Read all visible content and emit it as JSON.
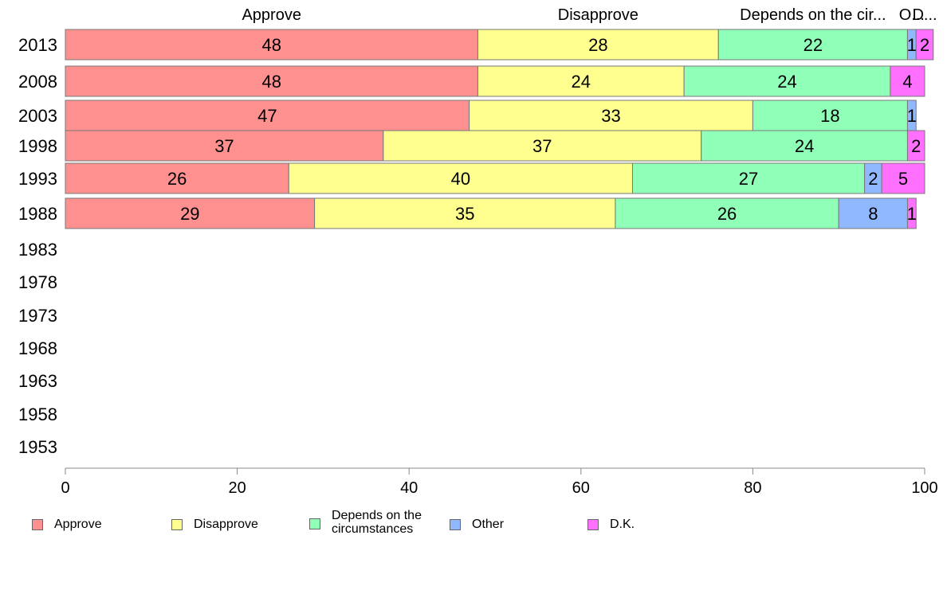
{
  "chart_data": {
    "type": "bar",
    "orientation": "horizontal",
    "stacked": true,
    "categories": [
      "2013",
      "2008",
      "2003",
      "1998",
      "1993",
      "1988",
      "1983",
      "1978",
      "1973",
      "1968",
      "1963",
      "1958",
      "1953"
    ],
    "series": [
      {
        "name": "Approve",
        "header_label": "Approve",
        "color": "#ff9090",
        "values": [
          48,
          48,
          47,
          37,
          26,
          29,
          null,
          null,
          null,
          null,
          null,
          null,
          null
        ]
      },
      {
        "name": "Disapprove",
        "header_label": "Disapprove",
        "color": "#ffff90",
        "values": [
          28,
          24,
          33,
          37,
          40,
          35,
          null,
          null,
          null,
          null,
          null,
          null,
          null
        ]
      },
      {
        "name": "Depends on the circumstances",
        "header_label": "Depends on the cir...",
        "legend_label": "Depends on the\ncircumstances",
        "color": "#90ffb8",
        "values": [
          22,
          24,
          18,
          24,
          27,
          26,
          null,
          null,
          null,
          null,
          null,
          null,
          null
        ]
      },
      {
        "name": "Other",
        "header_label": "O...",
        "color": "#90b8ff",
        "values": [
          1,
          0,
          1,
          0,
          2,
          8,
          null,
          null,
          null,
          null,
          null,
          null,
          null
        ]
      },
      {
        "name": "D.K.",
        "header_label": "D...",
        "color": "#ff70ff",
        "values": [
          2,
          4,
          0,
          2,
          5,
          1,
          null,
          null,
          null,
          null,
          null,
          null,
          null
        ]
      }
    ],
    "xlim": [
      0,
      100
    ],
    "x_ticks": [
      0,
      20,
      40,
      60,
      80,
      100
    ],
    "grid": false,
    "legend_position": "bottom",
    "title": "",
    "xlabel": "",
    "ylabel": ""
  }
}
